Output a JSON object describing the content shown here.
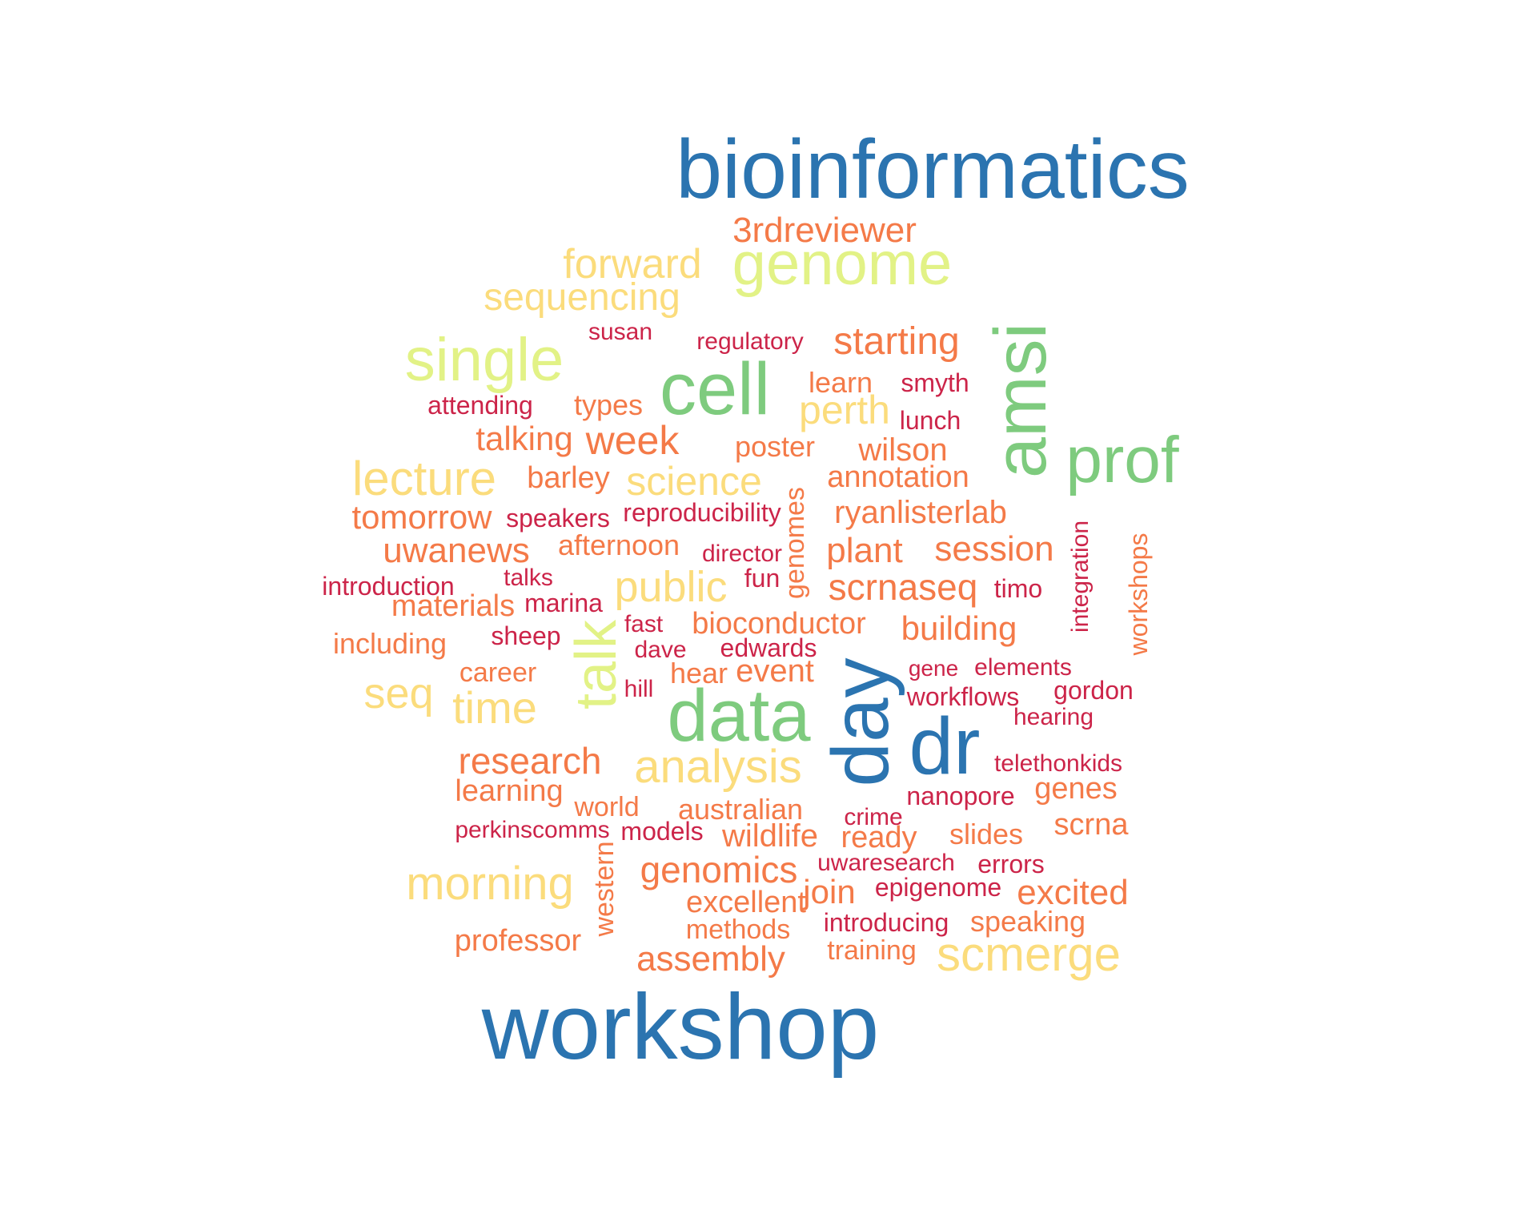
{
  "colors": {
    "blue": "#2b74b0",
    "green": "#7ecb7e",
    "lime": "#e2f286",
    "yellow": "#fbdc7c",
    "orange": "#f47a48",
    "red": "#cc2449"
  },
  "words": [
    {
      "id": "bioinformatics",
      "text": "bioinformatics",
      "color": "blue"
    },
    {
      "id": "workshop",
      "text": "workshop",
      "color": "blue"
    },
    {
      "id": "dr",
      "text": "dr",
      "color": "blue"
    },
    {
      "id": "day",
      "text": "day",
      "color": "blue"
    },
    {
      "id": "data",
      "text": "data",
      "color": "green"
    },
    {
      "id": "cell",
      "text": "cell",
      "color": "green"
    },
    {
      "id": "amsi",
      "text": "amsi",
      "color": "green"
    },
    {
      "id": "prof",
      "text": "prof",
      "color": "green"
    },
    {
      "id": "genome",
      "text": "genome",
      "color": "lime"
    },
    {
      "id": "single",
      "text": "single",
      "color": "lime"
    },
    {
      "id": "talk",
      "text": "talk",
      "color": "lime"
    },
    {
      "id": "3rdreviewer",
      "text": "3rdreviewer",
      "color": "orange"
    },
    {
      "id": "forward",
      "text": "forward",
      "color": "yellow"
    },
    {
      "id": "sequencing",
      "text": "sequencing",
      "color": "yellow"
    },
    {
      "id": "susan",
      "text": "susan",
      "color": "red"
    },
    {
      "id": "regulatory",
      "text": "regulatory",
      "color": "red"
    },
    {
      "id": "starting",
      "text": "starting",
      "color": "orange"
    },
    {
      "id": "learn",
      "text": "learn",
      "color": "orange"
    },
    {
      "id": "smyth",
      "text": "smyth",
      "color": "red"
    },
    {
      "id": "attending",
      "text": "attending",
      "color": "red"
    },
    {
      "id": "types",
      "text": "types",
      "color": "orange"
    },
    {
      "id": "perth",
      "text": "perth",
      "color": "yellow"
    },
    {
      "id": "lunch",
      "text": "lunch",
      "color": "red"
    },
    {
      "id": "talking",
      "text": "talking",
      "color": "orange"
    },
    {
      "id": "week",
      "text": "week",
      "color": "orange"
    },
    {
      "id": "poster",
      "text": "poster",
      "color": "orange"
    },
    {
      "id": "wilson",
      "text": "wilson",
      "color": "orange"
    },
    {
      "id": "lecture",
      "text": "lecture",
      "color": "yellow"
    },
    {
      "id": "barley",
      "text": "barley",
      "color": "orange"
    },
    {
      "id": "science",
      "text": "science",
      "color": "yellow"
    },
    {
      "id": "annotation",
      "text": "annotation",
      "color": "orange"
    },
    {
      "id": "tomorrow",
      "text": "tomorrow",
      "color": "orange"
    },
    {
      "id": "speakers",
      "text": "speakers",
      "color": "red"
    },
    {
      "id": "reproducibility",
      "text": "reproducibility",
      "color": "red"
    },
    {
      "id": "genomes",
      "text": "genomes",
      "color": "orange"
    },
    {
      "id": "ryanlisterlab",
      "text": "ryanlisterlab",
      "color": "orange"
    },
    {
      "id": "integration",
      "text": "integration",
      "color": "red"
    },
    {
      "id": "workshops",
      "text": "workshops",
      "color": "orange"
    },
    {
      "id": "uwanews",
      "text": "uwanews",
      "color": "orange"
    },
    {
      "id": "afternoon",
      "text": "afternoon",
      "color": "orange"
    },
    {
      "id": "director",
      "text": "director",
      "color": "red"
    },
    {
      "id": "plant",
      "text": "plant",
      "color": "orange"
    },
    {
      "id": "session",
      "text": "session",
      "color": "orange"
    },
    {
      "id": "introduction",
      "text": "introduction",
      "color": "red"
    },
    {
      "id": "talks",
      "text": "talks",
      "color": "red"
    },
    {
      "id": "public",
      "text": "public",
      "color": "yellow"
    },
    {
      "id": "fun",
      "text": "fun",
      "color": "red"
    },
    {
      "id": "scrnaseq",
      "text": "scrnaseq",
      "color": "orange"
    },
    {
      "id": "timo",
      "text": "timo",
      "color": "red"
    },
    {
      "id": "materials",
      "text": "materials",
      "color": "orange"
    },
    {
      "id": "marina",
      "text": "marina",
      "color": "red"
    },
    {
      "id": "fast",
      "text": "fast",
      "color": "red"
    },
    {
      "id": "bioconductor",
      "text": "bioconductor",
      "color": "orange"
    },
    {
      "id": "building",
      "text": "building",
      "color": "orange"
    },
    {
      "id": "including",
      "text": "including",
      "color": "orange"
    },
    {
      "id": "sheep",
      "text": "sheep",
      "color": "red"
    },
    {
      "id": "dave",
      "text": "dave",
      "color": "red"
    },
    {
      "id": "edwards",
      "text": "edwards",
      "color": "red"
    },
    {
      "id": "career",
      "text": "career",
      "color": "orange"
    },
    {
      "id": "hear",
      "text": "hear",
      "color": "orange"
    },
    {
      "id": "event",
      "text": "event",
      "color": "orange"
    },
    {
      "id": "gene",
      "text": "gene",
      "color": "red"
    },
    {
      "id": "elements",
      "text": "elements",
      "color": "red"
    },
    {
      "id": "seq",
      "text": "seq",
      "color": "yellow"
    },
    {
      "id": "hill",
      "text": "hill",
      "color": "red"
    },
    {
      "id": "workflows",
      "text": "workflows",
      "color": "red"
    },
    {
      "id": "gordon",
      "text": "gordon",
      "color": "red"
    },
    {
      "id": "time",
      "text": "time",
      "color": "yellow"
    },
    {
      "id": "hearing",
      "text": "hearing",
      "color": "red"
    },
    {
      "id": "research",
      "text": "research",
      "color": "orange"
    },
    {
      "id": "analysis",
      "text": "analysis",
      "color": "yellow"
    },
    {
      "id": "telethonkids",
      "text": "telethonkids",
      "color": "red"
    },
    {
      "id": "learning",
      "text": "learning",
      "color": "orange"
    },
    {
      "id": "nanopore",
      "text": "nanopore",
      "color": "red"
    },
    {
      "id": "genes",
      "text": "genes",
      "color": "orange"
    },
    {
      "id": "world",
      "text": "world",
      "color": "orange"
    },
    {
      "id": "australian",
      "text": "australian",
      "color": "orange"
    },
    {
      "id": "crime",
      "text": "crime",
      "color": "red"
    },
    {
      "id": "perkinscomms",
      "text": "perkinscomms",
      "color": "red"
    },
    {
      "id": "models",
      "text": "models",
      "color": "red"
    },
    {
      "id": "wildlife",
      "text": "wildlife",
      "color": "orange"
    },
    {
      "id": "ready",
      "text": "ready",
      "color": "orange"
    },
    {
      "id": "slides",
      "text": "slides",
      "color": "orange"
    },
    {
      "id": "scrna",
      "text": "scrna",
      "color": "orange"
    },
    {
      "id": "western",
      "text": "western",
      "color": "orange"
    },
    {
      "id": "uwaresearch",
      "text": "uwaresearch",
      "color": "red"
    },
    {
      "id": "errors",
      "text": "errors",
      "color": "red"
    },
    {
      "id": "genomics",
      "text": "genomics",
      "color": "orange"
    },
    {
      "id": "morning",
      "text": "morning",
      "color": "yellow"
    },
    {
      "id": "join",
      "text": "join",
      "color": "orange"
    },
    {
      "id": "epigenome",
      "text": "epigenome",
      "color": "red"
    },
    {
      "id": "excited",
      "text": "excited",
      "color": "orange"
    },
    {
      "id": "excellent",
      "text": "excellent",
      "color": "orange"
    },
    {
      "id": "introducing",
      "text": "introducing",
      "color": "red"
    },
    {
      "id": "speaking",
      "text": "speaking",
      "color": "orange"
    },
    {
      "id": "methods",
      "text": "methods",
      "color": "orange"
    },
    {
      "id": "professor",
      "text": "professor",
      "color": "orange"
    },
    {
      "id": "training",
      "text": "training",
      "color": "orange"
    },
    {
      "id": "scmerge",
      "text": "scmerge",
      "color": "yellow"
    },
    {
      "id": "assembly",
      "text": "assembly",
      "color": "orange"
    }
  ]
}
